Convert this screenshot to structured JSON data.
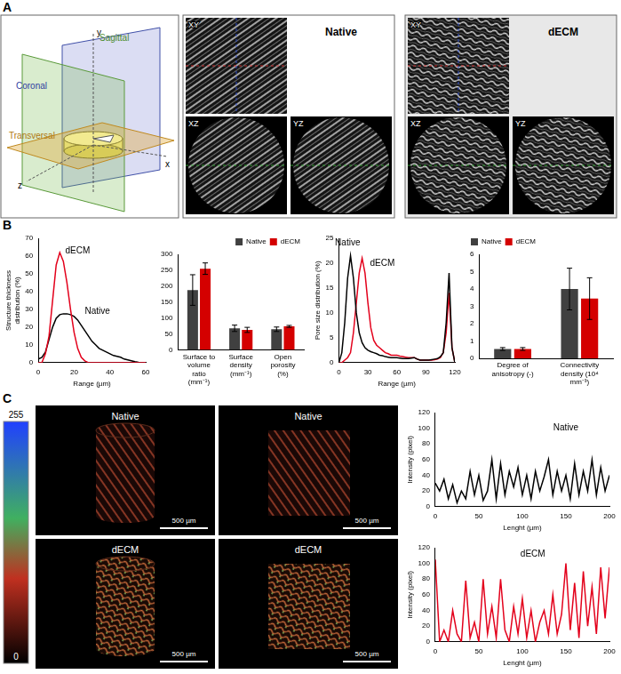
{
  "figure": {
    "panel_letters": [
      "A",
      "B",
      "C"
    ],
    "A": {
      "planes": [
        "Sagittal",
        "Coronal",
        "Transversal"
      ],
      "axes": [
        "y",
        "x",
        "z"
      ],
      "views": [
        {
          "title": "Native",
          "slices": [
            "XY",
            "XZ",
            "YZ"
          ]
        },
        {
          "title": "dECM",
          "slices": [
            "XY",
            "XZ",
            "YZ"
          ]
        }
      ]
    },
    "C": {
      "colorbar": {
        "range": [
          0,
          255
        ],
        "ticks": [
          0,
          255
        ]
      },
      "images": [
        {
          "title": "Native",
          "scale_bar": "500 µm"
        },
        {
          "title": "Native",
          "scale_bar": "500 µm"
        },
        {
          "title": "dECM",
          "scale_bar": "500 µm"
        },
        {
          "title": "dECM",
          "scale_bar": "500 µm"
        }
      ]
    }
  },
  "chart_data": [
    {
      "type": "line",
      "x_label": "Range (µm)",
      "y_label": "Structure thickness distribution (%)",
      "x": [
        0,
        2,
        4,
        6,
        8,
        10,
        12,
        14,
        16,
        18,
        20,
        22,
        24,
        26,
        28,
        30,
        32,
        34,
        36,
        38,
        40,
        42,
        44,
        46,
        48,
        50,
        52,
        54,
        56,
        58,
        60
      ],
      "series": [
        {
          "name": "dECM",
          "color": "#e3001b",
          "values": [
            0,
            0,
            5,
            15,
            35,
            55,
            62,
            57,
            45,
            30,
            17,
            8,
            3,
            1,
            0,
            0,
            0,
            0,
            0,
            0,
            0,
            0,
            0,
            0,
            0,
            0,
            0,
            0,
            0,
            0,
            0
          ]
        },
        {
          "name": "Native",
          "color": "#000000",
          "values": [
            2,
            3,
            6,
            13,
            20,
            25,
            27,
            27.5,
            27.5,
            27,
            26,
            24,
            21,
            18,
            15,
            12,
            10,
            8,
            7,
            6,
            5,
            4,
            3.5,
            3,
            2,
            1.5,
            1,
            0.5,
            0.2,
            0,
            0
          ]
        }
      ],
      "annotations": [
        {
          "text": "dECM",
          "x": 22,
          "y": 63,
          "color": "#000000"
        },
        {
          "text": "Native",
          "x": 33,
          "y": 29,
          "color": "#000000"
        }
      ],
      "xlim": [
        0,
        60
      ],
      "xticks": [
        0,
        20,
        40,
        60
      ],
      "ylim": [
        0,
        70
      ],
      "yticks": [
        0,
        10,
        20,
        30,
        40,
        50,
        60,
        70
      ],
      "grid": false
    },
    {
      "type": "bar",
      "categories": [
        "Surface to volume ratio (mm⁻¹)",
        "Surface density (mm⁻¹)",
        "Open porosity (%)"
      ],
      "series": [
        {
          "name": "Native",
          "color": "#404040",
          "values": [
            188,
            68,
            65
          ],
          "errors": [
            48,
            10,
            7
          ]
        },
        {
          "name": "dECM",
          "color": "#d40000",
          "values": [
            255,
            63,
            74
          ],
          "errors": [
            18,
            8,
            3
          ]
        }
      ],
      "ylim": [
        0,
        300
      ],
      "yticks": [
        0,
        50,
        100,
        150,
        200,
        250,
        300
      ],
      "legend": "top-right",
      "grid": false
    },
    {
      "type": "line",
      "x_label": "Range (µm)",
      "y_label": "Pore size distribution (%)",
      "x": [
        0,
        3,
        6,
        9,
        12,
        15,
        18,
        21,
        24,
        27,
        30,
        33,
        36,
        39,
        42,
        45,
        48,
        51,
        54,
        57,
        60,
        63,
        66,
        69,
        72,
        75,
        78,
        81,
        84,
        87,
        90,
        93,
        96,
        99,
        102,
        105,
        108,
        111,
        114,
        117,
        120
      ],
      "series": [
        {
          "name": "Native",
          "color": "#000000",
          "values": [
            0,
            2,
            8,
            17,
            21.5,
            17,
            10,
            6,
            4,
            3,
            2.5,
            2.2,
            2,
            1.8,
            1.5,
            1.4,
            1.2,
            1.1,
            1,
            1,
            1,
            0.9,
            0.8,
            0.8,
            0.8,
            0.9,
            1,
            0.7,
            0.5,
            0.5,
            0.5,
            0.5,
            0.6,
            0.7,
            0.8,
            1.2,
            2,
            8,
            18,
            3,
            0
          ]
        },
        {
          "name": "dECM",
          "color": "#e3001b",
          "values": [
            0,
            0,
            0.5,
            1,
            2,
            6,
            12,
            18,
            21,
            18,
            12,
            7,
            4.5,
            3.5,
            3,
            2.5,
            2,
            1.8,
            1.5,
            1.5,
            1.5,
            1.3,
            1.2,
            1.1,
            1,
            1,
            1,
            0.7,
            0.5,
            0.5,
            0.5,
            0.5,
            0.5,
            0.6,
            0.7,
            1,
            2,
            6,
            14,
            3,
            0
          ]
        }
      ],
      "annotations": [
        {
          "text": "Native",
          "x": 9,
          "y": 24,
          "color": "#000000"
        },
        {
          "text": "dECM",
          "x": 45,
          "y": 20,
          "color": "#000000"
        }
      ],
      "xlim": [
        0,
        120
      ],
      "xticks": [
        0,
        30,
        60,
        90,
        120
      ],
      "ylim": [
        0,
        25
      ],
      "yticks": [
        0,
        5,
        10,
        15,
        20,
        25
      ],
      "grid": false
    },
    {
      "type": "bar",
      "categories": [
        "Degree of anisotropy (-)",
        "Connectivity density (10⁴ mm⁻³)"
      ],
      "series": [
        {
          "name": "Native",
          "color": "#404040",
          "values": [
            0.55,
            4.0
          ],
          "errors": [
            0.08,
            1.2
          ]
        },
        {
          "name": "dECM",
          "color": "#d40000",
          "values": [
            0.55,
            3.45
          ],
          "errors": [
            0.08,
            1.2
          ]
        }
      ],
      "ylim": [
        0,
        6
      ],
      "yticks": [
        0,
        1,
        2,
        3,
        4,
        5,
        6
      ],
      "legend": "top-left",
      "grid": false
    },
    {
      "type": "line",
      "x_label": "Lenght (µm)",
      "y_label": "Intensity (pixel)",
      "x": [
        0,
        5,
        10,
        15,
        20,
        25,
        30,
        35,
        40,
        45,
        50,
        55,
        60,
        65,
        70,
        75,
        80,
        85,
        90,
        95,
        100,
        105,
        110,
        115,
        120,
        125,
        130,
        135,
        140,
        145,
        150,
        155,
        160,
        165,
        170,
        175,
        180,
        185,
        190,
        195,
        200
      ],
      "series": [
        {
          "name": "Native",
          "color": "#000000",
          "values": [
            30,
            20,
            35,
            10,
            28,
            5,
            20,
            10,
            45,
            15,
            40,
            8,
            20,
            60,
            10,
            55,
            15,
            45,
            25,
            50,
            15,
            40,
            10,
            45,
            20,
            38,
            60,
            15,
            45,
            20,
            40,
            10,
            55,
            15,
            45,
            20,
            60,
            15,
            50,
            20,
            40
          ]
        }
      ],
      "annotations": [
        {
          "text": "Native",
          "x": 150,
          "y": 100,
          "color": "#000000"
        }
      ],
      "xlim": [
        0,
        200
      ],
      "xticks": [
        0,
        50,
        100,
        150,
        200
      ],
      "ylim": [
        0,
        120
      ],
      "yticks": [
        0,
        20,
        40,
        60,
        80,
        100,
        120
      ],
      "grid": false
    },
    {
      "type": "line",
      "x_label": "Lenght (µm)",
      "y_label": "Intensity (pixel)",
      "x": [
        0,
        5,
        10,
        15,
        20,
        25,
        30,
        35,
        40,
        45,
        50,
        55,
        60,
        65,
        70,
        75,
        80,
        85,
        90,
        95,
        100,
        105,
        110,
        115,
        120,
        125,
        130,
        135,
        140,
        145,
        150,
        155,
        160,
        165,
        170,
        175,
        180,
        185,
        190,
        195,
        200
      ],
      "series": [
        {
          "name": "dECM",
          "color": "#e3001b",
          "values": [
            105,
            0,
            15,
            0,
            40,
            10,
            0,
            78,
            5,
            25,
            0,
            80,
            10,
            45,
            5,
            80,
            15,
            0,
            45,
            10,
            55,
            5,
            40,
            0,
            25,
            40,
            10,
            60,
            10,
            35,
            100,
            15,
            75,
            5,
            90,
            20,
            70,
            10,
            95,
            30,
            95
          ]
        }
      ],
      "annotations": [
        {
          "text": "dECM",
          "x": 112,
          "y": 112,
          "color": "#000000"
        }
      ],
      "xlim": [
        0,
        200
      ],
      "xticks": [
        0,
        50,
        100,
        150,
        200
      ],
      "ylim": [
        0,
        120
      ],
      "yticks": [
        0,
        20,
        40,
        60,
        80,
        100,
        120
      ],
      "grid": false
    }
  ]
}
